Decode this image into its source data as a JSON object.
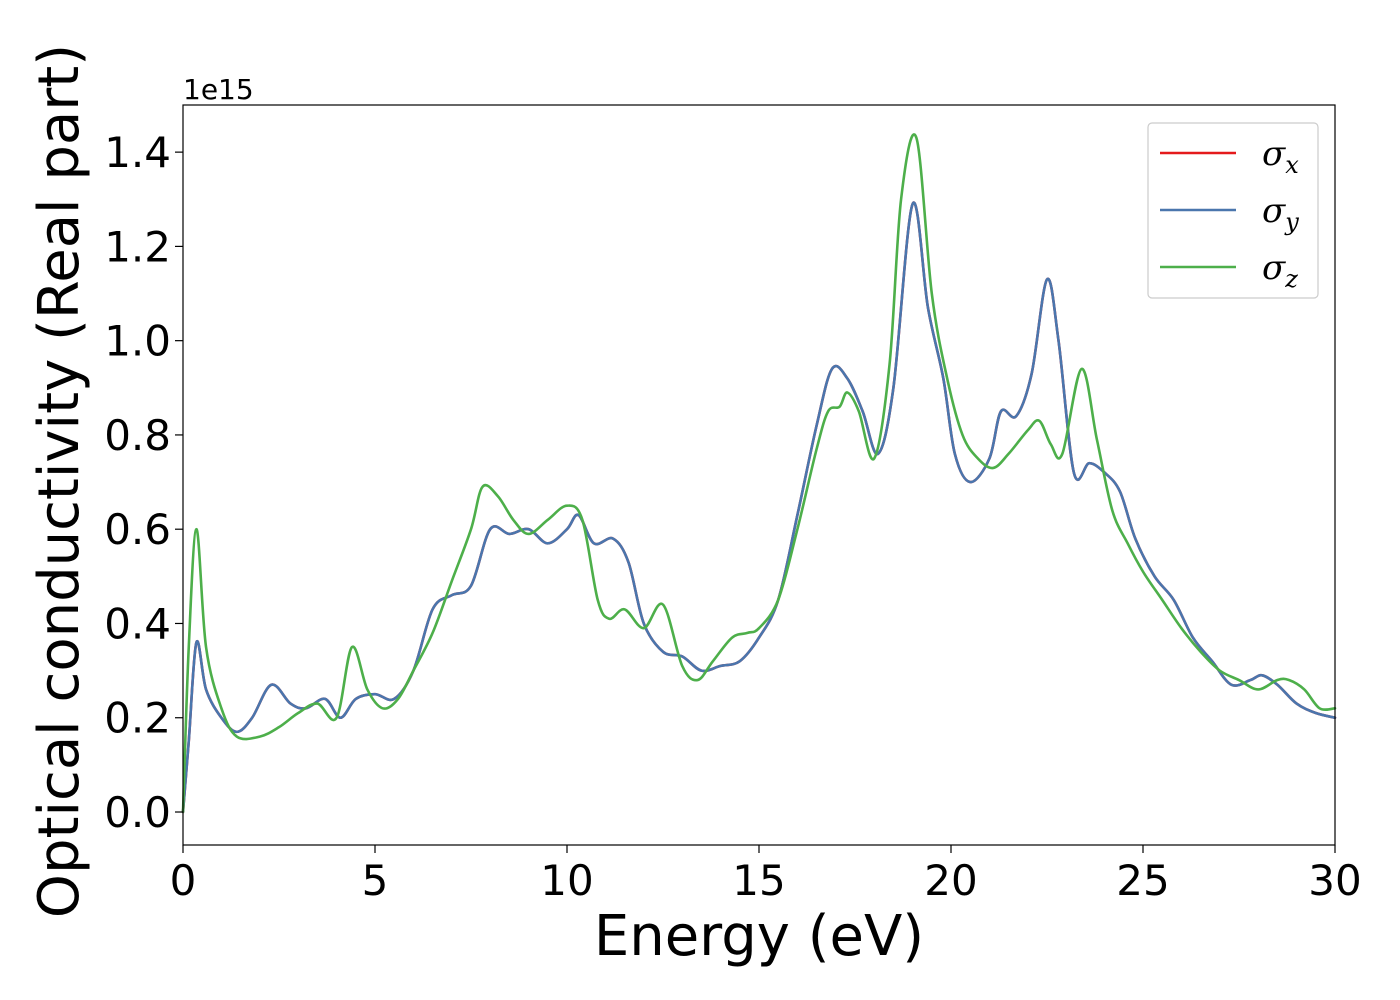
{
  "chart_data": {
    "type": "line",
    "xlabel": "Energy (eV)",
    "ylabel": "Optical conductivity (Real part)",
    "y_offset_label": "1e15",
    "xlim": [
      0,
      30
    ],
    "ylim": [
      -0.07,
      1.5
    ],
    "x_ticks": [
      0,
      5,
      10,
      15,
      20,
      25,
      30
    ],
    "x_tick_labels": [
      "0",
      "5",
      "10",
      "15",
      "20",
      "25",
      "30"
    ],
    "y_ticks": [
      0.0,
      0.2,
      0.4,
      0.6,
      0.8,
      1.0,
      1.2,
      1.4
    ],
    "y_tick_labels": [
      "0.0",
      "0.2",
      "0.4",
      "0.6",
      "0.8",
      "1.0",
      "1.2",
      "1.4"
    ],
    "grid": false,
    "legend_position": "top-right",
    "series": [
      {
        "name": "σ",
        "subscript": "x",
        "color": "#e41a1c",
        "x": [
          0,
          0.15,
          0.35,
          0.6,
          1.0,
          1.4,
          1.8,
          2.3,
          2.8,
          3.2,
          3.7,
          4.1,
          4.5,
          5.0,
          5.5,
          6.0,
          6.5,
          7.0,
          7.5,
          8.0,
          8.5,
          9.0,
          9.5,
          10.0,
          10.3,
          10.7,
          11.2,
          11.6,
          12.0,
          12.5,
          13.0,
          13.5,
          14.0,
          14.5,
          15.0,
          15.5,
          16.0,
          16.5,
          16.9,
          17.3,
          17.7,
          18.1,
          18.5,
          19.0,
          19.4,
          19.8,
          20.1,
          20.5,
          21.0,
          21.3,
          21.7,
          22.1,
          22.5,
          22.8,
          23.2,
          23.6,
          24.0,
          24.4,
          24.8,
          25.3,
          25.8,
          26.3,
          26.8,
          27.3,
          27.8,
          28.1,
          28.5,
          29.0,
          29.5,
          30.0
        ],
        "values": [
          0.0,
          0.15,
          0.36,
          0.26,
          0.2,
          0.17,
          0.2,
          0.27,
          0.23,
          0.22,
          0.24,
          0.2,
          0.24,
          0.25,
          0.24,
          0.3,
          0.43,
          0.46,
          0.48,
          0.6,
          0.59,
          0.6,
          0.57,
          0.6,
          0.63,
          0.57,
          0.58,
          0.53,
          0.4,
          0.34,
          0.33,
          0.3,
          0.31,
          0.32,
          0.37,
          0.45,
          0.63,
          0.82,
          0.94,
          0.92,
          0.85,
          0.76,
          0.9,
          1.29,
          1.07,
          0.92,
          0.76,
          0.7,
          0.75,
          0.85,
          0.84,
          0.93,
          1.13,
          1.0,
          0.72,
          0.74,
          0.72,
          0.68,
          0.58,
          0.5,
          0.45,
          0.37,
          0.32,
          0.27,
          0.28,
          0.29,
          0.27,
          0.23,
          0.21,
          0.2
        ]
      },
      {
        "name": "σ",
        "subscript": "y",
        "color": "#4a76ad",
        "x": [
          0,
          0.15,
          0.35,
          0.6,
          1.0,
          1.4,
          1.8,
          2.3,
          2.8,
          3.2,
          3.7,
          4.1,
          4.5,
          5.0,
          5.5,
          6.0,
          6.5,
          7.0,
          7.5,
          8.0,
          8.5,
          9.0,
          9.5,
          10.0,
          10.3,
          10.7,
          11.2,
          11.6,
          12.0,
          12.5,
          13.0,
          13.5,
          14.0,
          14.5,
          15.0,
          15.5,
          16.0,
          16.5,
          16.9,
          17.3,
          17.7,
          18.1,
          18.5,
          19.0,
          19.4,
          19.8,
          20.1,
          20.5,
          21.0,
          21.3,
          21.7,
          22.1,
          22.5,
          22.8,
          23.2,
          23.6,
          24.0,
          24.4,
          24.8,
          25.3,
          25.8,
          26.3,
          26.8,
          27.3,
          27.8,
          28.1,
          28.5,
          29.0,
          29.5,
          30.0
        ],
        "values": [
          0.0,
          0.15,
          0.36,
          0.26,
          0.2,
          0.17,
          0.2,
          0.27,
          0.23,
          0.22,
          0.24,
          0.2,
          0.24,
          0.25,
          0.24,
          0.3,
          0.43,
          0.46,
          0.48,
          0.6,
          0.59,
          0.6,
          0.57,
          0.6,
          0.63,
          0.57,
          0.58,
          0.53,
          0.4,
          0.34,
          0.33,
          0.3,
          0.31,
          0.32,
          0.37,
          0.45,
          0.63,
          0.82,
          0.94,
          0.92,
          0.85,
          0.76,
          0.9,
          1.29,
          1.07,
          0.92,
          0.76,
          0.7,
          0.75,
          0.85,
          0.84,
          0.93,
          1.13,
          1.0,
          0.72,
          0.74,
          0.72,
          0.68,
          0.58,
          0.5,
          0.45,
          0.37,
          0.32,
          0.27,
          0.28,
          0.29,
          0.27,
          0.23,
          0.21,
          0.2
        ]
      },
      {
        "name": "σ",
        "subscript": "z",
        "color": "#4daf4a",
        "x": [
          0,
          0.15,
          0.35,
          0.6,
          1.0,
          1.4,
          2.0,
          2.5,
          3.0,
          3.5,
          4.0,
          4.4,
          4.8,
          5.2,
          5.6,
          6.0,
          6.5,
          7.0,
          7.5,
          7.8,
          8.2,
          8.6,
          9.0,
          9.5,
          10.0,
          10.4,
          10.8,
          11.1,
          11.5,
          12.0,
          12.5,
          13.0,
          13.4,
          13.8,
          14.3,
          14.7,
          15.0,
          15.5,
          16.0,
          16.5,
          16.8,
          17.1,
          17.3,
          17.6,
          18.0,
          18.4,
          18.7,
          19.1,
          19.5,
          19.9,
          20.3,
          20.7,
          21.1,
          21.5,
          22.0,
          22.3,
          22.6,
          22.9,
          23.4,
          23.8,
          24.2,
          24.6,
          25.0,
          25.5,
          26.0,
          26.5,
          27.0,
          27.5,
          28.0,
          28.5,
          28.8,
          29.2,
          29.6,
          30.0
        ],
        "values": [
          0.0,
          0.35,
          0.6,
          0.35,
          0.22,
          0.16,
          0.16,
          0.18,
          0.21,
          0.23,
          0.2,
          0.35,
          0.26,
          0.22,
          0.24,
          0.3,
          0.38,
          0.49,
          0.6,
          0.69,
          0.67,
          0.62,
          0.59,
          0.62,
          0.65,
          0.62,
          0.45,
          0.41,
          0.43,
          0.39,
          0.44,
          0.31,
          0.28,
          0.32,
          0.37,
          0.38,
          0.39,
          0.45,
          0.6,
          0.77,
          0.85,
          0.86,
          0.89,
          0.85,
          0.75,
          0.95,
          1.3,
          1.43,
          1.1,
          0.92,
          0.8,
          0.75,
          0.73,
          0.76,
          0.81,
          0.83,
          0.78,
          0.76,
          0.94,
          0.79,
          0.64,
          0.57,
          0.51,
          0.45,
          0.39,
          0.34,
          0.3,
          0.28,
          0.26,
          0.28,
          0.28,
          0.26,
          0.22,
          0.22
        ]
      }
    ]
  }
}
